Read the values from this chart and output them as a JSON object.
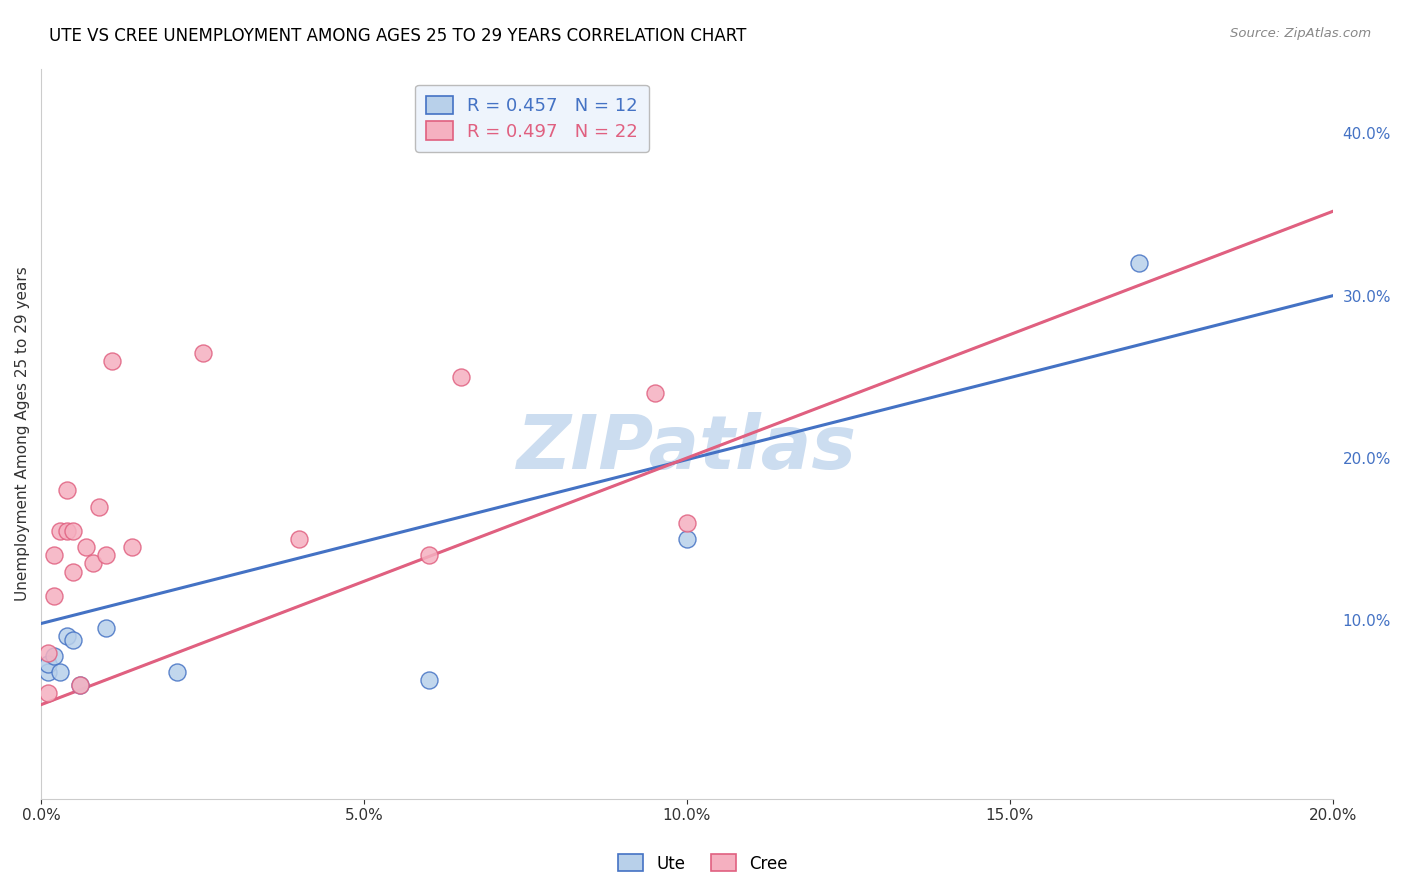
{
  "title": "UTE VS CREE UNEMPLOYMENT AMONG AGES 25 TO 29 YEARS CORRELATION CHART",
  "source": "Source: ZipAtlas.com",
  "ylabel_left": "Unemployment Among Ages 25 to 29 years",
  "xlim": [
    0.0,
    0.2
  ],
  "ylim": [
    -0.01,
    0.44
  ],
  "xticks": [
    0.0,
    0.05,
    0.1,
    0.15,
    0.2
  ],
  "yticks_right": [
    0.1,
    0.2,
    0.3,
    0.4
  ],
  "ute_R": 0.457,
  "ute_N": 12,
  "cree_R": 0.497,
  "cree_N": 22,
  "ute_color": "#b8d0ea",
  "cree_color": "#f5b0c0",
  "ute_line_color": "#4472c4",
  "cree_line_color": "#e06080",
  "dashed_line_color": "#e0b0c0",
  "watermark": "ZIPatlas",
  "watermark_color": "#ccddf0",
  "ute_x": [
    0.001,
    0.001,
    0.002,
    0.003,
    0.004,
    0.005,
    0.006,
    0.01,
    0.021,
    0.06,
    0.1,
    0.17
  ],
  "ute_y": [
    0.068,
    0.073,
    0.078,
    0.068,
    0.09,
    0.088,
    0.06,
    0.095,
    0.068,
    0.063,
    0.15,
    0.32
  ],
  "cree_x": [
    0.001,
    0.001,
    0.002,
    0.002,
    0.003,
    0.004,
    0.004,
    0.005,
    0.005,
    0.006,
    0.007,
    0.008,
    0.009,
    0.01,
    0.011,
    0.014,
    0.025,
    0.04,
    0.06,
    0.065,
    0.095,
    0.1
  ],
  "cree_y": [
    0.055,
    0.08,
    0.115,
    0.14,
    0.155,
    0.155,
    0.18,
    0.13,
    0.155,
    0.06,
    0.145,
    0.135,
    0.17,
    0.14,
    0.26,
    0.145,
    0.265,
    0.15,
    0.14,
    0.25,
    0.24,
    0.16
  ],
  "legend_box_color": "#eef4fc",
  "legend_box_edge": "#bbbbbb",
  "grid_color": "#cccccc",
  "spine_color": "#cccccc"
}
